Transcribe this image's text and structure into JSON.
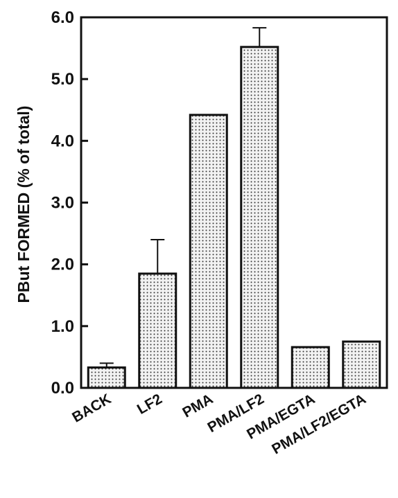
{
  "chart_data": {
    "type": "bar",
    "title": "",
    "xlabel": "",
    "ylabel": "PBut FORMED (% of total)",
    "categories": [
      "BACK",
      "LF2",
      "PMA",
      "PMA/LF2",
      "PMA/EGTA",
      "PMA/LF2/EGTA"
    ],
    "values": [
      0.33,
      1.85,
      4.42,
      5.52,
      0.66,
      0.75
    ],
    "error_upper": [
      0.4,
      2.4,
      null,
      5.83,
      null,
      null
    ],
    "ylim": [
      0.0,
      6.0
    ],
    "yticks": [
      "0.0",
      "1.0",
      "2.0",
      "3.0",
      "4.0",
      "5.0",
      "6.0"
    ],
    "grid": false,
    "legend": "none",
    "colors": {
      "bar_fill": "#f2f2f2",
      "bar_dots": "#333333",
      "stroke": "#111111"
    }
  }
}
